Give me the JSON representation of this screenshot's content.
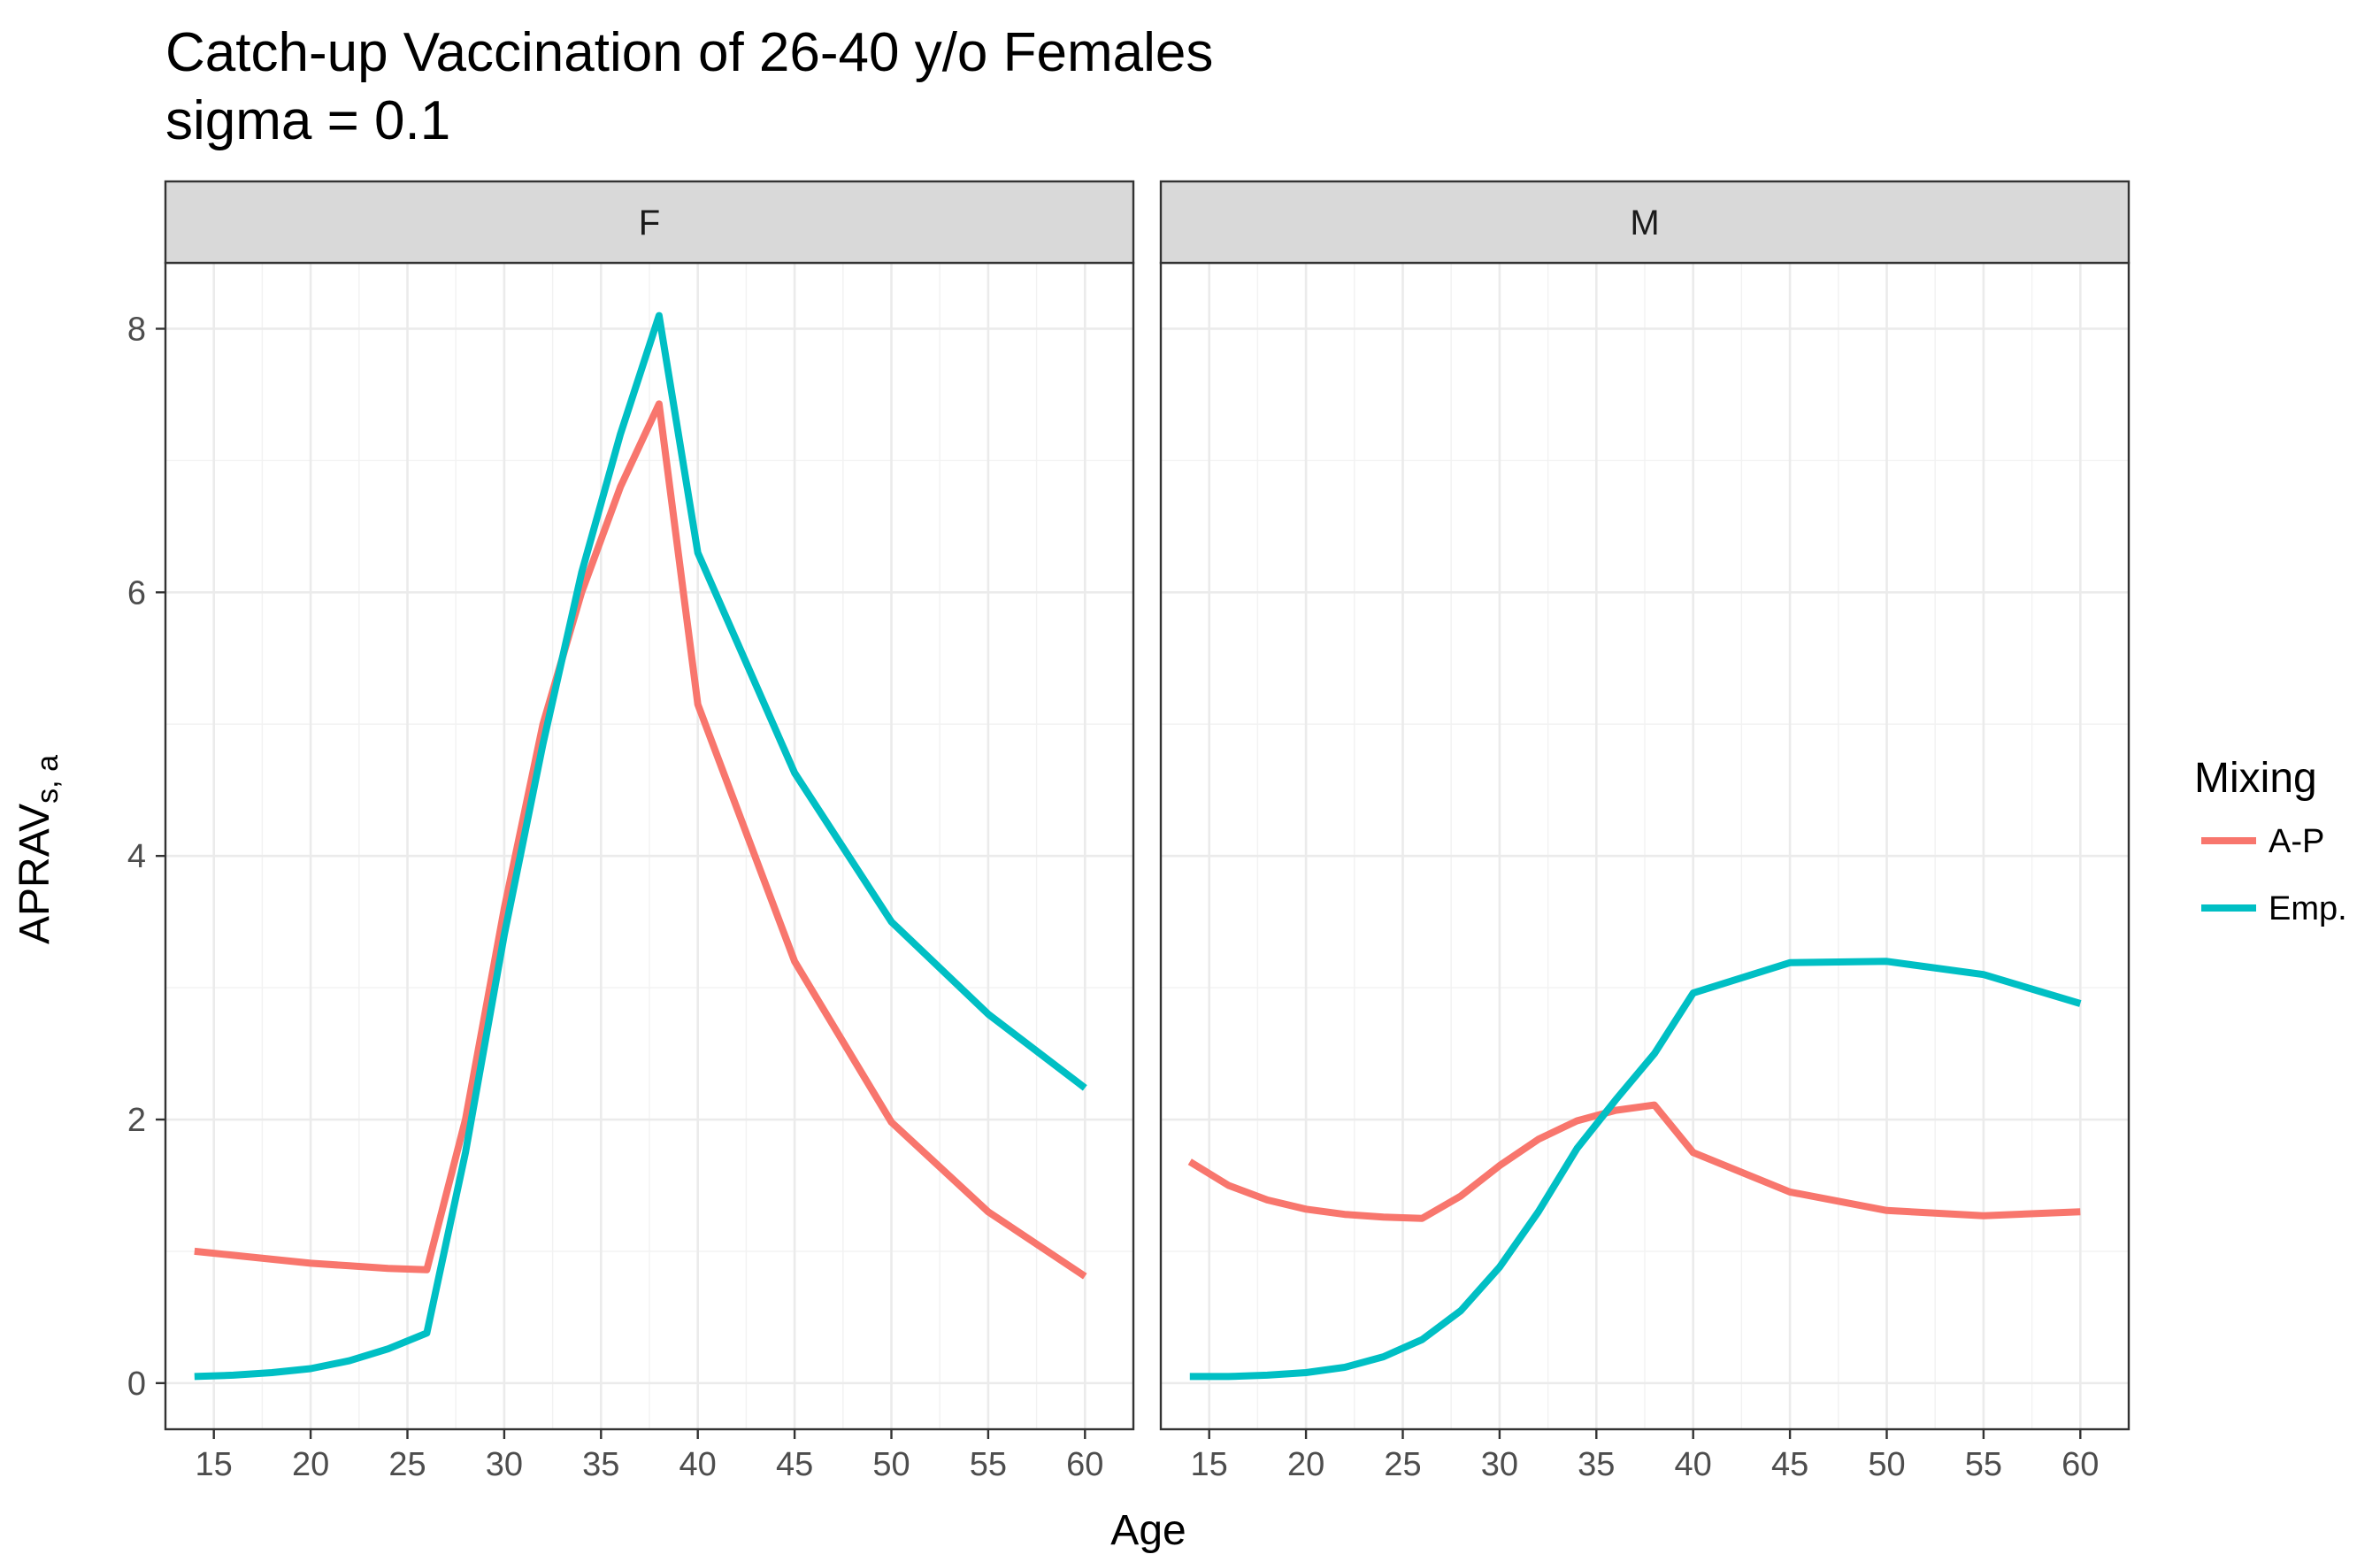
{
  "chart_data": {
    "type": "line",
    "title": "Catch-up Vaccination of 26-40 y/o Females",
    "subtitle": "sigma =  0.1",
    "xlabel": "Age",
    "ylabel_main": "APRAV",
    "ylabel_sub": "s, a",
    "xlim": [
      12.5,
      62.5
    ],
    "ylim": [
      -0.35,
      8.5
    ],
    "x_ticks": [
      15,
      20,
      25,
      30,
      35,
      40,
      45,
      50,
      55,
      60
    ],
    "y_ticks": [
      0,
      2,
      4,
      6,
      8
    ],
    "grid": true,
    "legend": {
      "title": "Mixing",
      "position": "right",
      "entries": [
        "A-P",
        "Emp."
      ]
    },
    "colors": {
      "A-P": "#F8766D",
      "Emp.": "#00BFC4"
    },
    "panels": [
      {
        "facet": "F",
        "series": [
          {
            "name": "A-P",
            "x": [
              14,
              16,
              18,
              20,
              22,
              24,
              26,
              28,
              30,
              32,
              34,
              36,
              38,
              40,
              45,
              50,
              55,
              60
            ],
            "y": [
              1.0,
              0.97,
              0.94,
              0.91,
              0.89,
              0.87,
              0.86,
              2.0,
              3.6,
              5.0,
              6.0,
              6.8,
              7.43,
              5.15,
              3.2,
              1.98,
              1.3,
              0.81
            ]
          },
          {
            "name": "Emp.",
            "x": [
              14,
              16,
              18,
              20,
              22,
              24,
              26,
              28,
              30,
              32,
              34,
              36,
              38,
              40,
              45,
              50,
              55,
              60
            ],
            "y": [
              0.05,
              0.06,
              0.08,
              0.11,
              0.17,
              0.26,
              0.38,
              1.75,
              3.4,
              4.85,
              6.15,
              7.2,
              8.1,
              6.3,
              4.63,
              3.5,
              2.8,
              2.24
            ]
          }
        ]
      },
      {
        "facet": "M",
        "series": [
          {
            "name": "A-P",
            "x": [
              14,
              16,
              18,
              20,
              22,
              24,
              26,
              28,
              30,
              32,
              34,
              36,
              38,
              40,
              45,
              50,
              55,
              60
            ],
            "y": [
              1.68,
              1.5,
              1.39,
              1.32,
              1.28,
              1.26,
              1.25,
              1.42,
              1.65,
              1.85,
              1.99,
              2.07,
              2.11,
              1.75,
              1.45,
              1.31,
              1.27,
              1.3
            ]
          },
          {
            "name": "Emp.",
            "x": [
              14,
              16,
              18,
              20,
              22,
              24,
              26,
              28,
              30,
              32,
              34,
              36,
              38,
              40,
              45,
              50,
              55,
              60
            ],
            "y": [
              0.05,
              0.05,
              0.06,
              0.08,
              0.12,
              0.2,
              0.33,
              0.55,
              0.88,
              1.3,
              1.78,
              2.15,
              2.5,
              2.96,
              3.19,
              3.2,
              3.1,
              2.88
            ]
          }
        ]
      }
    ]
  }
}
